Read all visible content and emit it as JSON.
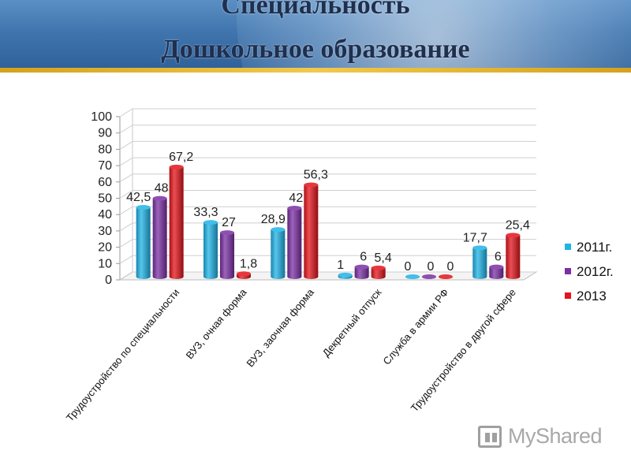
{
  "slide": {
    "title_line1": "Специальность",
    "title_line2": "Дошкольное образование",
    "logo_text": "MyShared"
  },
  "chart_data": {
    "type": "bar",
    "categories": [
      "Трудоустройство по специальности",
      "ВУЗ, очная форма",
      "ВУЗ, заочная форма",
      "Декретный отпуск",
      "Служба в армии РФ",
      "Трудоустройство в другой сфере"
    ],
    "series": [
      {
        "name": "2011г.",
        "color": "#1fb3e6",
        "values": [
          42.5,
          33.3,
          28.9,
          1,
          0,
          17.7
        ],
        "labels": [
          "42,5",
          "33,3",
          "28,9",
          "1",
          "0",
          "17,7"
        ]
      },
      {
        "name": "2012г.",
        "color": "#7b2fa3",
        "values": [
          48,
          27,
          42,
          6,
          0,
          6
        ],
        "labels": [
          "48",
          "27",
          "42",
          "6",
          "0",
          "6"
        ]
      },
      {
        "name": "2013",
        "color": "#e3141b",
        "values": [
          67.2,
          1.8,
          56.3,
          5.4,
          0,
          25.4
        ],
        "labels": [
          "67,2",
          "1,8",
          "56,3",
          "5,4",
          "0",
          "25,4"
        ]
      }
    ],
    "ylim": [
      0,
      100
    ],
    "yticks": [
      0,
      10,
      20,
      30,
      40,
      50,
      60,
      70,
      80,
      90,
      100
    ],
    "grid": true,
    "legend_position": "right"
  }
}
